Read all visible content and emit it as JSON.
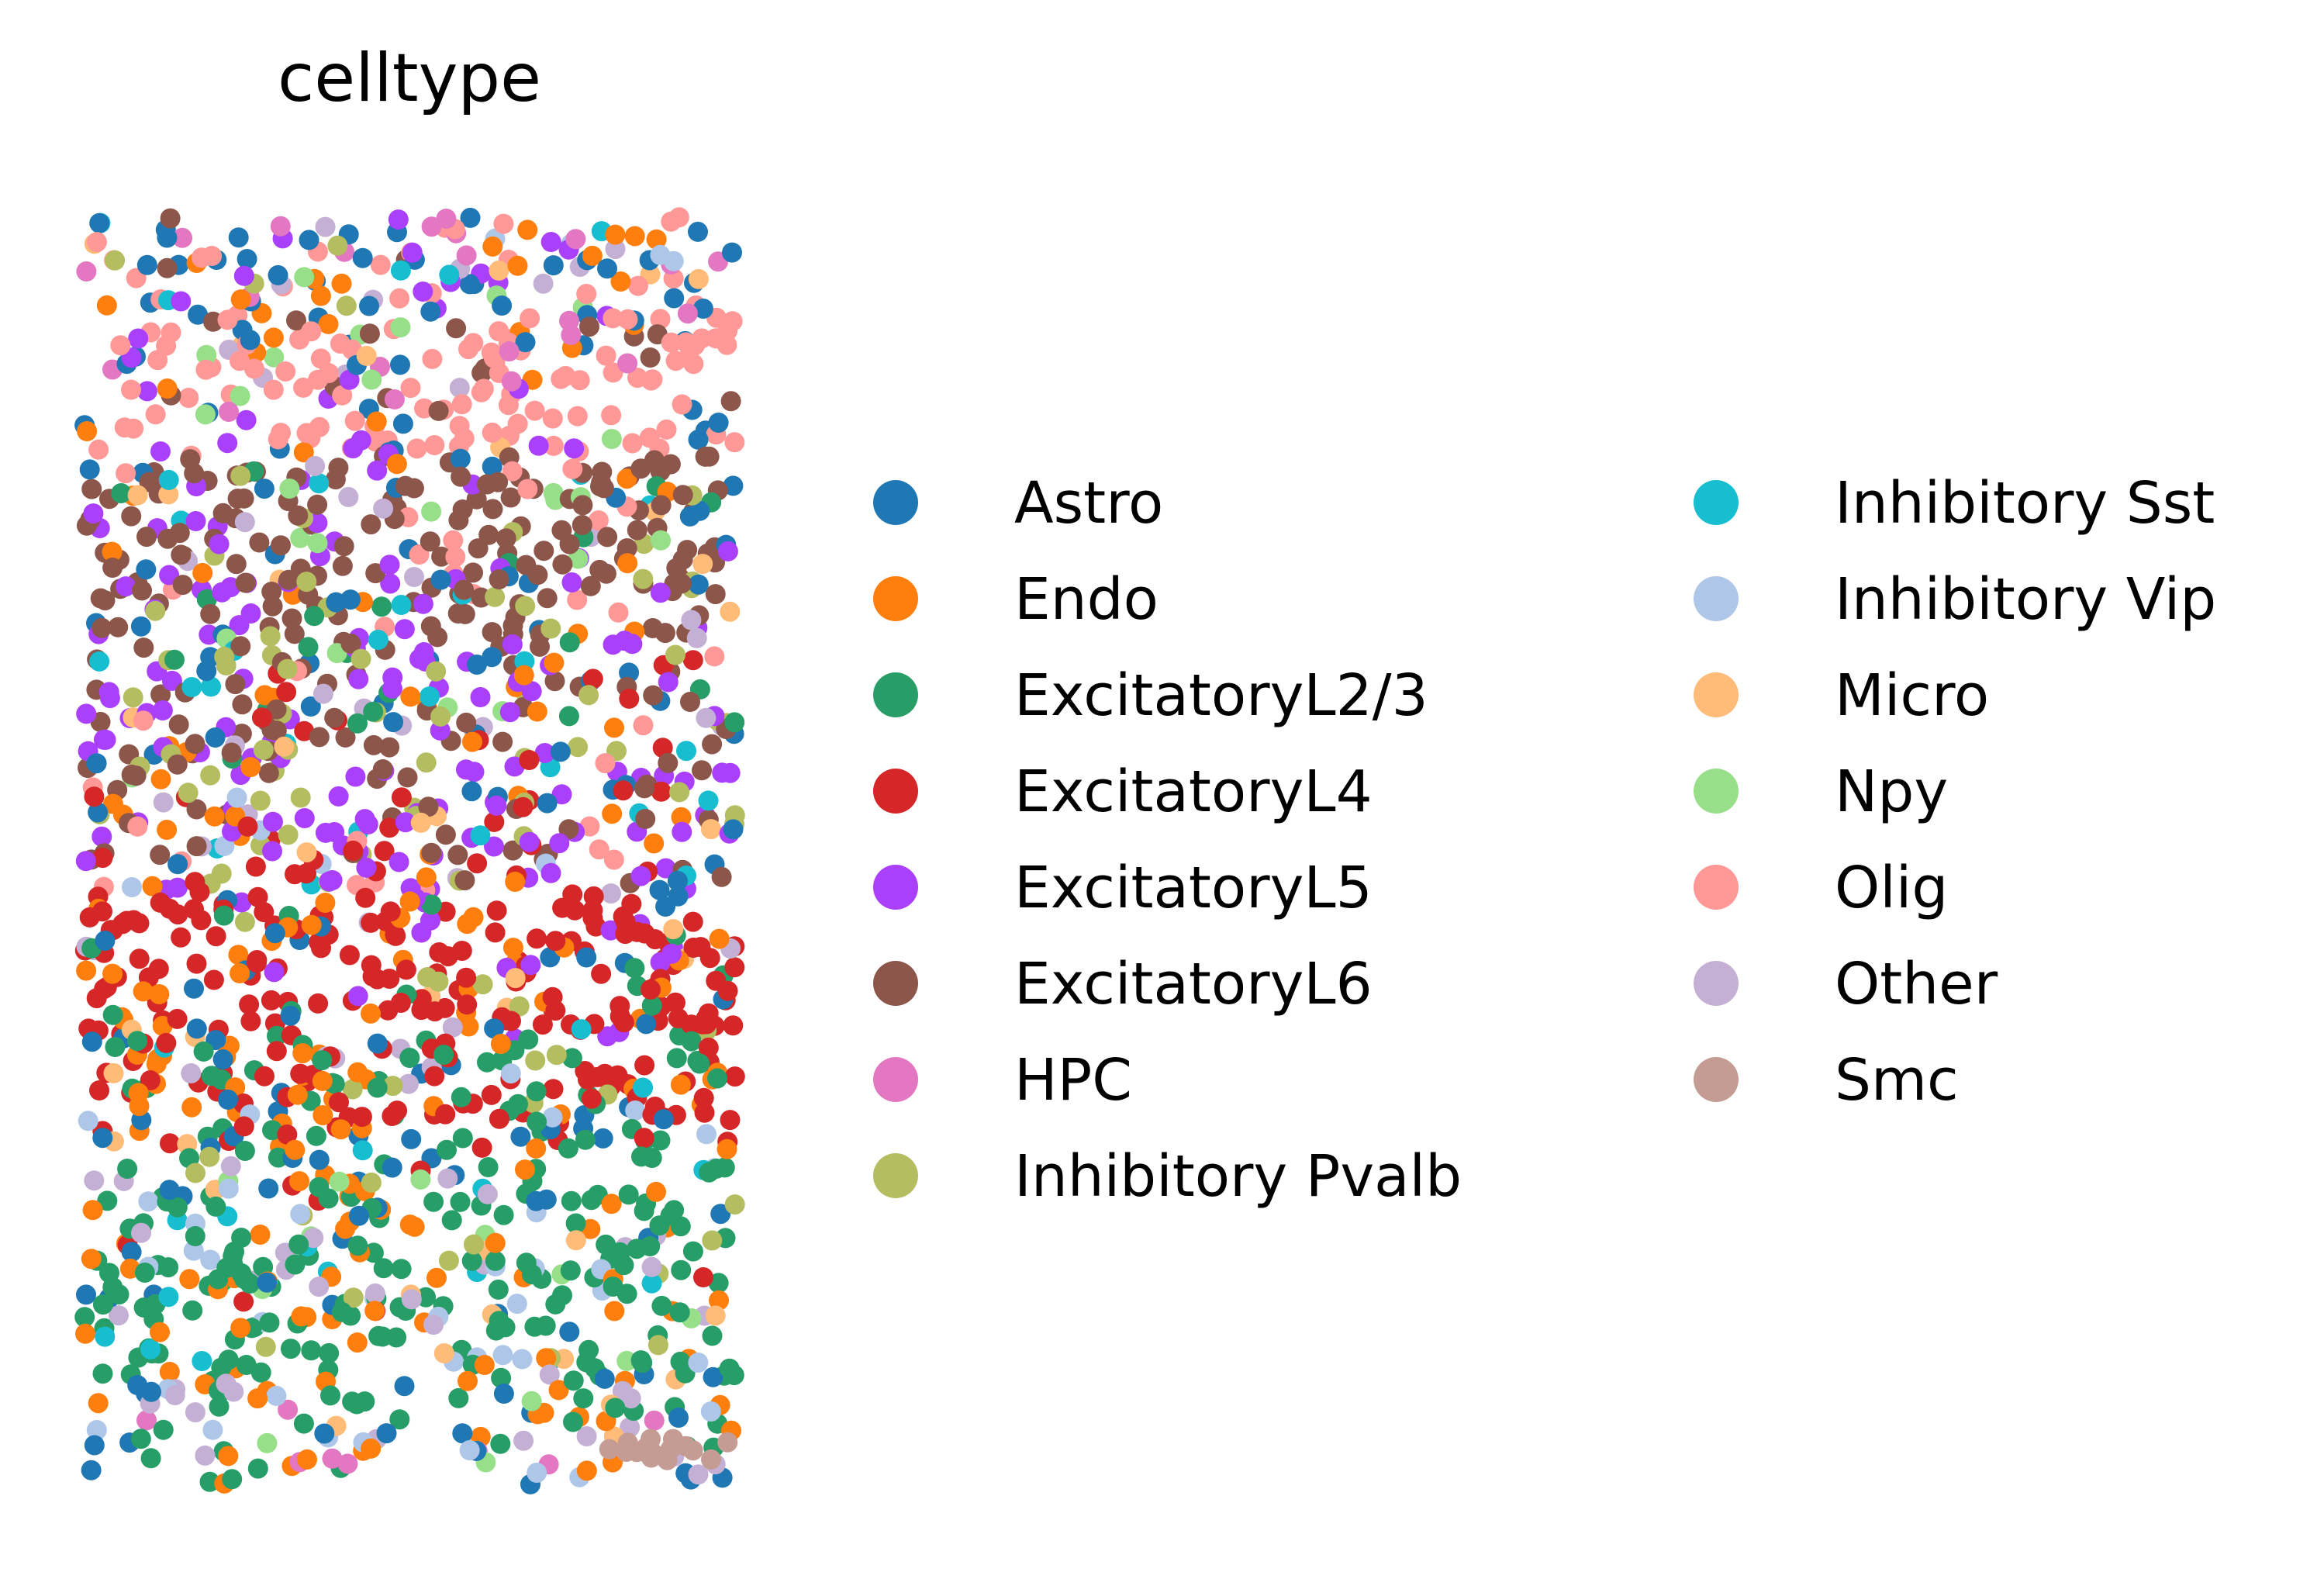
{
  "chart_data": {
    "type": "scatter",
    "title": "celltype",
    "xlabel": "",
    "ylabel": "",
    "grid": false,
    "axes_visible": false,
    "legend_placement": "right",
    "legend_columns": 2,
    "series": [
      {
        "name": "Astro",
        "color": "#1f77b4"
      },
      {
        "name": "Endo",
        "color": "#ff7f0e"
      },
      {
        "name": "ExcitatoryL2/3",
        "color": "#279e68"
      },
      {
        "name": "ExcitatoryL4",
        "color": "#d62728"
      },
      {
        "name": "ExcitatoryL5",
        "color": "#aa40fc"
      },
      {
        "name": "ExcitatoryL6",
        "color": "#8c564b"
      },
      {
        "name": "HPC",
        "color": "#e377c2"
      },
      {
        "name": "Inhibitory Pvalb",
        "color": "#b5bd61"
      },
      {
        "name": "Inhibitory Sst",
        "color": "#17becf"
      },
      {
        "name": "Inhibitory Vip",
        "color": "#aec7e8"
      },
      {
        "name": "Micro",
        "color": "#ffbb78"
      },
      {
        "name": "Npy",
        "color": "#98df8a"
      },
      {
        "name": "Olig",
        "color": "#ff9896"
      },
      {
        "name": "Other",
        "color": "#c5b0d5"
      },
      {
        "name": "Smc",
        "color": "#c49c94"
      }
    ]
  }
}
